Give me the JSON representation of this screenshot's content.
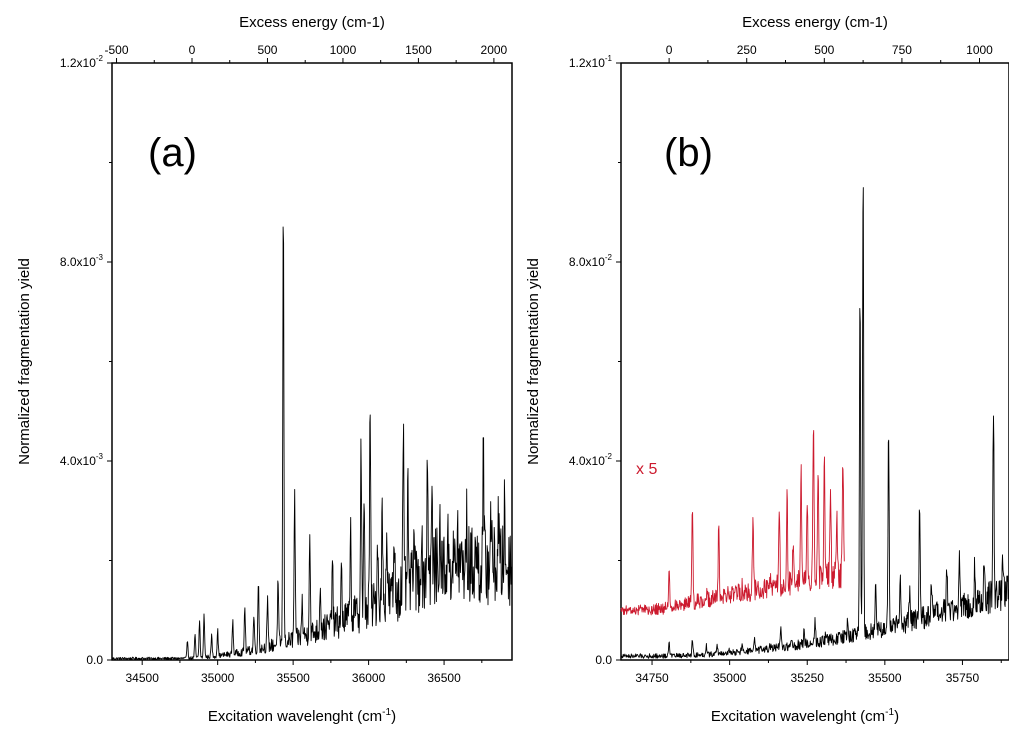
{
  "chart_data": [
    {
      "type": "line",
      "panel_label": "(a)",
      "xlabel": "Excitation wavelenght (cm",
      "xlabel_sup": "-1",
      "xlabel_close": ")",
      "x2label": "Excess energy (cm-1)",
      "ylabel": "Normalized fragmentation yield",
      "xlim": [
        34300,
        36950
      ],
      "ylim": [
        0,
        0.012
      ],
      "x_ticks": [
        34500,
        35000,
        35500,
        36000,
        36500
      ],
      "x_tick_labels": [
        "34500",
        "35000",
        "35500",
        "36000",
        "36500"
      ],
      "y_ticks": [
        0,
        0.004,
        0.008,
        0.012
      ],
      "y_tick_labels": [
        {
          "base": "0.0",
          "exp": ""
        },
        {
          "base": "4.0x10",
          "exp": "-3"
        },
        {
          "base": "8.0x10",
          "exp": "-3"
        },
        {
          "base": "1.2x10",
          "exp": "-2"
        }
      ],
      "x2_offset": 34830,
      "x2_ticks": [
        -500,
        0,
        500,
        1000,
        1500,
        2000
      ],
      "x2_tick_labels": [
        "-500",
        "0",
        "500",
        "1000",
        "1500",
        "2000"
      ],
      "grid": false,
      "series": [
        {
          "color": "#000000",
          "peaks": [
            [
              34800,
              0.0004
            ],
            [
              34850,
              0.0005
            ],
            [
              34880,
              0.0008
            ],
            [
              34910,
              0.00095
            ],
            [
              34960,
              0.0005
            ],
            [
              35000,
              0.0006
            ],
            [
              35100,
              0.0008
            ],
            [
              35180,
              0.0011
            ],
            [
              35240,
              0.0009
            ],
            [
              35270,
              0.0016
            ],
            [
              35330,
              0.0012
            ],
            [
              35400,
              0.0016
            ],
            [
              35435,
              0.0093
            ],
            [
              35510,
              0.0034
            ],
            [
              35560,
              0.0012
            ],
            [
              35610,
              0.0026
            ],
            [
              35680,
              0.0016
            ],
            [
              35760,
              0.0021
            ],
            [
              35820,
              0.0018
            ],
            [
              35880,
              0.0027
            ],
            [
              35950,
              0.0044
            ],
            [
              35970,
              0.0031
            ],
            [
              36010,
              0.0051
            ],
            [
              36060,
              0.0025
            ],
            [
              36090,
              0.0031
            ],
            [
              36120,
              0.0027
            ],
            [
              36170,
              0.0025
            ],
            [
              36230,
              0.0044
            ],
            [
              36260,
              0.0033
            ],
            [
              36300,
              0.0027
            ],
            [
              36350,
              0.0026
            ],
            [
              36390,
              0.0043
            ],
            [
              36420,
              0.0032
            ],
            [
              36470,
              0.0025
            ],
            [
              36530,
              0.0024
            ],
            [
              36590,
              0.0025
            ],
            [
              36650,
              0.0027
            ],
            [
              36710,
              0.0023
            ],
            [
              36760,
              0.004
            ],
            [
              36810,
              0.0031
            ],
            [
              36860,
              0.0029
            ],
            [
              36900,
              0.003
            ]
          ]
        }
      ]
    },
    {
      "type": "line",
      "panel_label": "(b)",
      "xlabel": "Excitation wavelenght (cm",
      "xlabel_sup": "-1",
      "xlabel_close": ")",
      "x2label": "Excess energy (cm-1)",
      "ylabel": "Normalized fragmentation yield",
      "xlim": [
        34650,
        35900
      ],
      "ylim": [
        0,
        0.12
      ],
      "x_ticks": [
        34750,
        35000,
        35250,
        35500,
        35750
      ],
      "x_tick_labels": [
        "34750",
        "35000",
        "35250",
        "35500",
        "35750"
      ],
      "y_ticks": [
        0,
        0.04,
        0.08,
        0.12
      ],
      "y_tick_labels": [
        {
          "base": "0.0",
          "exp": ""
        },
        {
          "base": "4.0x10",
          "exp": "-2"
        },
        {
          "base": "8.0x10",
          "exp": "-2"
        },
        {
          "base": "1.2x10",
          "exp": "-1"
        }
      ],
      "x2_offset": 34805,
      "x2_ticks": [
        0,
        250,
        500,
        750,
        1000
      ],
      "x2_tick_labels": [
        "0",
        "250",
        "500",
        "750",
        "1000"
      ],
      "grid": false,
      "annotation": "x 5",
      "series": [
        {
          "color": "#000000",
          "peaks": [
            [
              34805,
              0.004
            ],
            [
              34880,
              0.004
            ],
            [
              34925,
              0.003
            ],
            [
              34960,
              0.003
            ],
            [
              35000,
              0.002
            ],
            [
              35040,
              0.003
            ],
            [
              35080,
              0.004
            ],
            [
              35130,
              0.003
            ],
            [
              35165,
              0.006
            ],
            [
              35200,
              0.004
            ],
            [
              35240,
              0.006
            ],
            [
              35275,
              0.008
            ],
            [
              35310,
              0.005
            ],
            [
              35345,
              0.004
            ],
            [
              35380,
              0.008
            ],
            [
              35420,
              0.075
            ],
            [
              35430,
              0.101
            ],
            [
              35470,
              0.015
            ],
            [
              35512,
              0.047
            ],
            [
              35550,
              0.016
            ],
            [
              35580,
              0.014
            ],
            [
              35612,
              0.032
            ],
            [
              35650,
              0.016
            ],
            [
              35700,
              0.018
            ],
            [
              35740,
              0.021
            ],
            [
              35790,
              0.019
            ],
            [
              35820,
              0.02
            ],
            [
              35850,
              0.05
            ],
            [
              35880,
              0.019
            ]
          ]
        },
        {
          "name": "x 5",
          "color": "#cc1a2e",
          "offset": 0.01,
          "x_end": 35370,
          "peaks": [
            [
              34805,
              0.019
            ],
            [
              34880,
              0.031
            ],
            [
              34925,
              0.013
            ],
            [
              34965,
              0.028
            ],
            [
              35000,
              0.014
            ],
            [
              35040,
              0.015
            ],
            [
              35075,
              0.029
            ],
            [
              35100,
              0.013
            ],
            [
              35130,
              0.017
            ],
            [
              35160,
              0.031
            ],
            [
              35185,
              0.034
            ],
            [
              35205,
              0.025
            ],
            [
              35230,
              0.038
            ],
            [
              35250,
              0.03
            ],
            [
              35270,
              0.049
            ],
            [
              35285,
              0.038
            ],
            [
              35305,
              0.044
            ],
            [
              35325,
              0.036
            ],
            [
              35345,
              0.03
            ],
            [
              35365,
              0.04
            ]
          ]
        }
      ]
    }
  ]
}
